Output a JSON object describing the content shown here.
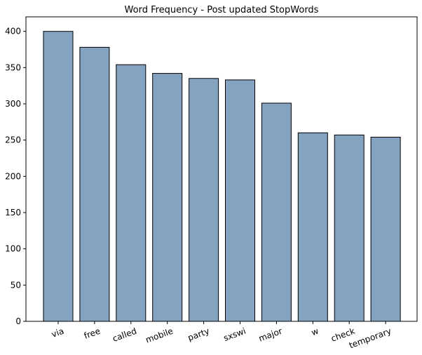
{
  "chart_data": {
    "type": "bar",
    "title": "Word Frequency - Post updated StopWords",
    "categories": [
      "via",
      "free",
      "called",
      "mobile",
      "party",
      "sxswi",
      "major",
      "w",
      "check",
      "temporary"
    ],
    "values": [
      400,
      378,
      354,
      342,
      335,
      333,
      301,
      260,
      257,
      254
    ],
    "xlabel": "",
    "ylabel": "",
    "ylim": [
      0,
      420
    ],
    "yticks": [
      0,
      50,
      100,
      150,
      200,
      250,
      300,
      350,
      400
    ],
    "bar_color": "#84a3c0",
    "edge_color": "#000000",
    "grid": false
  }
}
